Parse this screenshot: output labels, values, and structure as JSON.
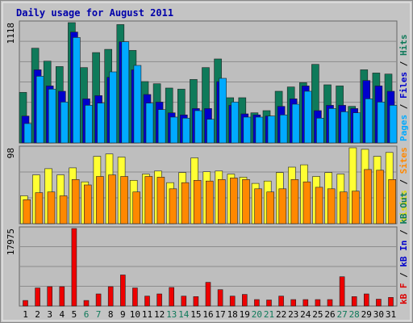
{
  "chart_data": {
    "type": "bar",
    "title": "Daily usage for August 2011",
    "categories": [
      "1",
      "2",
      "3",
      "4",
      "5",
      "6",
      "7",
      "8",
      "9",
      "10",
      "11",
      "12",
      "13",
      "14",
      "15",
      "16",
      "17",
      "18",
      "19",
      "20",
      "21",
      "22",
      "23",
      "24",
      "25",
      "26",
      "27",
      "28",
      "29",
      "30",
      "31"
    ],
    "weekend_days": [
      "6",
      "7",
      "13",
      "14",
      "20",
      "21",
      "27",
      "28"
    ],
    "panels": [
      {
        "name": "hits-files-pages",
        "ymax_label": "1118",
        "ymax": 1118,
        "side_label": [
          {
            "text": "Pages",
            "color": "#00aaff"
          },
          {
            "text": " / ",
            "color": "#000000"
          },
          {
            "text": "Files",
            "color": "#0000cc"
          },
          {
            "text": " / ",
            "color": "#000000"
          },
          {
            "text": "Hits",
            "color": "#0f7a5a"
          }
        ],
        "series": [
          {
            "name": "Hits",
            "color": "#0f7a5a",
            "values": [
              470,
              880,
              760,
              710,
              1118,
              700,
              840,
              870,
              1100,
              860,
              570,
              550,
              510,
              500,
              590,
              700,
              780,
              420,
              420,
              280,
              300,
              480,
              520,
              560,
              730,
              540,
              530,
              340,
              680,
              650,
              640
            ]
          },
          {
            "name": "Files",
            "color": "#0000cc",
            "values": [
              250,
              680,
              530,
              480,
              1030,
              410,
              440,
              610,
              940,
              680,
              450,
              380,
              280,
              260,
              320,
              320,
              570,
              350,
              270,
              260,
              250,
              340,
              410,
              530,
              300,
              350,
              350,
              320,
              580,
              530,
              480
            ]
          },
          {
            "name": "Pages",
            "color": "#00aaff",
            "values": [
              180,
              620,
              500,
              380,
              980,
              350,
              370,
              660,
              940,
              720,
              370,
              310,
              240,
              230,
              300,
              220,
              600,
              380,
              240,
              240,
              250,
              260,
              360,
              480,
              230,
              320,
              290,
              280,
              410,
              380,
              350
            ]
          }
        ]
      },
      {
        "name": "visits-sites",
        "ymax_label": "98",
        "ymax": 98,
        "side_label": [
          {
            "text": "Visits",
            "color": "#dddd00"
          },
          {
            "text": " / ",
            "color": "#000000"
          },
          {
            "text": "Sites",
            "color": "#ff8800"
          }
        ],
        "series": [
          {
            "name": "Visits",
            "color": "#ffff33",
            "values": [
              36,
              63,
              71,
              63,
              72,
              54,
              87,
              90,
              86,
              56,
              64,
              68,
              53,
              66,
              85,
              67,
              68,
              64,
              60,
              52,
              55,
              66,
              73,
              76,
              61,
              66,
              64,
              98,
              96,
              87,
              92
            ]
          },
          {
            "name": "Sites",
            "color": "#ff8800",
            "values": [
              31,
              40,
              41,
              36,
              57,
              50,
              61,
              63,
              61,
              41,
              61,
              60,
              45,
              53,
              56,
              55,
              57,
              59,
              57,
              45,
              41,
              45,
              57,
              54,
              47,
              45,
              41,
              42,
              70,
              69,
              57
            ]
          }
        ]
      },
      {
        "name": "kbytes",
        "ymax_label": "17975",
        "ymax": 17975,
        "side_label": [
          {
            "text": "kB F",
            "color": "#dd0000"
          },
          {
            "text": " / ",
            "color": "#000000"
          },
          {
            "text": "kB In",
            "color": "#0000cc"
          },
          {
            "text": " / ",
            "color": "#000000"
          },
          {
            "text": "kB Out",
            "color": "#0f7a5a"
          }
        ],
        "series": [
          {
            "name": "kB F",
            "color": "#ee0000",
            "values": [
              1300,
              4200,
              4500,
              4500,
              17975,
              1300,
              2800,
              4500,
              7200,
              4200,
              2300,
              2800,
              4300,
              2300,
              2200,
              5500,
              3800,
              2300,
              2700,
              1500,
              1400,
              2300,
              1500,
              1500,
              1500,
              1500,
              6800,
              2200,
              2800,
              1600,
              2000
            ]
          }
        ]
      }
    ],
    "colors": {
      "plot_bg": "#bebebe",
      "frame": "#666666",
      "title": "#0000aa",
      "weekday_label": "#000000",
      "weekend_label": "#0f7a5a"
    }
  }
}
